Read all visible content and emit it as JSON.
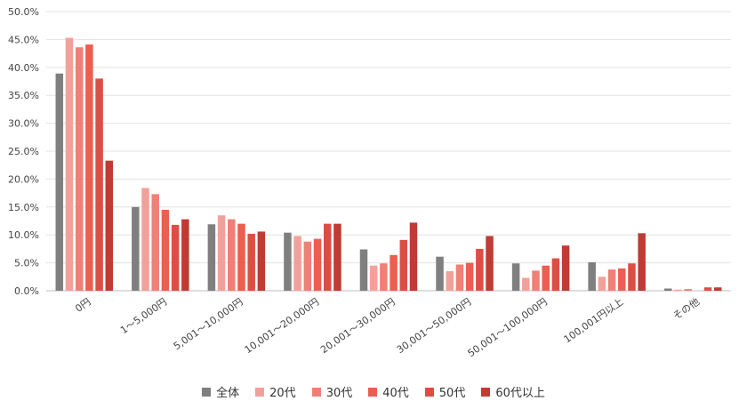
{
  "chart_data": {
    "type": "bar",
    "categories": [
      "0円",
      "1〜5,000円",
      "5,001〜10,000円",
      "10,001〜20,000円",
      "20,001〜30,000円",
      "30,001〜50,000円",
      "50,001〜100,000円",
      "100,001円以上",
      "その他"
    ],
    "series": [
      {
        "name": "全体",
        "color": "#7f7f7f",
        "values": [
          38.9,
          15.0,
          11.9,
          10.4,
          7.4,
          6.1,
          4.9,
          5.1,
          0.4
        ]
      },
      {
        "name": "20代",
        "color": "#f4a09a",
        "values": [
          45.3,
          18.4,
          13.5,
          9.8,
          4.5,
          3.5,
          2.3,
          2.5,
          0.2
        ]
      },
      {
        "name": "30代",
        "color": "#f07f76",
        "values": [
          43.6,
          17.3,
          12.8,
          8.8,
          4.9,
          4.7,
          3.6,
          3.8,
          0.3
        ]
      },
      {
        "name": "40代",
        "color": "#ec5e4f",
        "values": [
          44.1,
          14.5,
          12.0,
          9.3,
          6.4,
          5.0,
          4.5,
          4.0,
          0.0
        ]
      },
      {
        "name": "50代",
        "color": "#dc4e44",
        "values": [
          38.0,
          11.8,
          10.2,
          12.0,
          9.1,
          7.5,
          5.8,
          4.9,
          0.6
        ]
      },
      {
        "name": "60代以上",
        "color": "#bf3b33",
        "values": [
          23.3,
          12.8,
          10.6,
          12.0,
          12.2,
          9.8,
          8.1,
          10.3,
          0.6
        ]
      }
    ],
    "ylim": [
      0,
      50
    ],
    "yticks": [
      "0.0%",
      "5.0%",
      "10.0%",
      "15.0%",
      "20.0%",
      "25.0%",
      "30.0%",
      "35.0%",
      "40.0%",
      "45.0%",
      "50.0%"
    ],
    "grid": true,
    "legend_position": "bottom"
  }
}
